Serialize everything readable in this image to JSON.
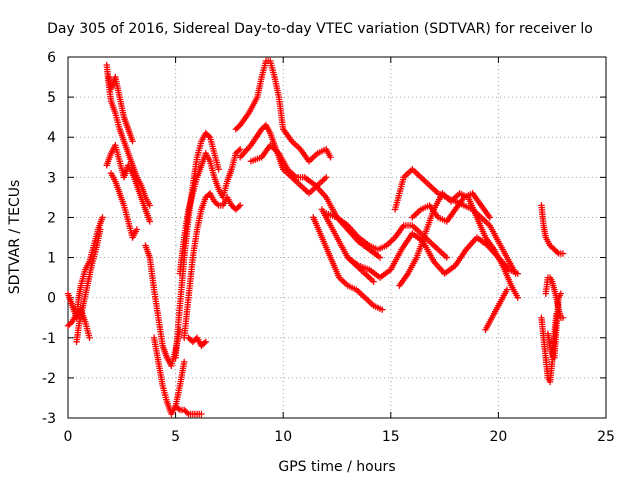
{
  "chart_data": {
    "type": "scatter",
    "title": "Day 305 of 2016, Sidereal Day-to-day VTEC variation (SDTVAR) for receiver lo",
    "xlabel": "GPS time / hours",
    "ylabel": "SDTVAR / TECUs",
    "xlim": [
      0,
      25
    ],
    "ylim": [
      -3,
      6
    ],
    "xticks": [
      0,
      5,
      10,
      15,
      20,
      25
    ],
    "yticks": [
      -3,
      -2,
      -1,
      0,
      1,
      2,
      3,
      4,
      5,
      6
    ],
    "grid": true,
    "marker": "+",
    "color": "#ff0000",
    "series": [
      {
        "x": [
          0,
          0.2,
          0.4,
          0.5,
          0.6,
          0.8,
          1.0,
          1.2,
          1.4,
          1.6
        ],
        "y": [
          0.1,
          -0.2,
          -0.5,
          0.0,
          0.3,
          0.7,
          0.9,
          1.3,
          1.7,
          2.0
        ]
      },
      {
        "x": [
          0,
          0.2,
          0.4,
          0.6,
          0.8,
          1.0
        ],
        "y": [
          -0.7,
          -0.6,
          -0.4,
          -0.3,
          -0.6,
          -1.0
        ]
      },
      {
        "x": [
          0.4,
          0.5,
          0.7,
          0.9,
          1.1,
          1.3,
          1.5
        ],
        "y": [
          -1.1,
          -0.7,
          -0.2,
          0.3,
          0.8,
          1.2,
          1.7
        ]
      },
      {
        "x": [
          1.8,
          1.9,
          2.0,
          2.2,
          2.4,
          2.6,
          2.8,
          3.0,
          3.2,
          3.4,
          3.6,
          3.8
        ],
        "y": [
          5.8,
          5.3,
          4.9,
          4.6,
          4.2,
          3.9,
          3.6,
          3.3,
          3.0,
          2.8,
          2.5,
          2.3
        ]
      },
      {
        "x": [
          1.9,
          2.0,
          2.2,
          2.4,
          2.6,
          2.8,
          3.0
        ],
        "y": [
          5.5,
          5.2,
          5.5,
          5.0,
          4.5,
          4.2,
          3.9
        ]
      },
      {
        "x": [
          1.8,
          2.0,
          2.2,
          2.4,
          2.6,
          2.8,
          3.0,
          3.2,
          3.4,
          3.6,
          3.8
        ],
        "y": [
          3.3,
          3.6,
          3.8,
          3.4,
          3.0,
          3.3,
          3.1,
          2.8,
          2.5,
          2.2,
          1.9
        ]
      },
      {
        "x": [
          2.0,
          2.2,
          2.4,
          2.6,
          2.8,
          3.0,
          3.2
        ],
        "y": [
          3.1,
          2.9,
          2.6,
          2.3,
          1.9,
          1.5,
          1.7
        ]
      },
      {
        "x": [
          3.6,
          3.8,
          4.0,
          4.2,
          4.4,
          4.6,
          4.8,
          5.0,
          5.2
        ],
        "y": [
          1.3,
          1.0,
          0.2,
          -0.5,
          -1.2,
          -1.5,
          -1.7,
          -1.3,
          -0.8
        ]
      },
      {
        "x": [
          4.0,
          4.2,
          4.4,
          4.6,
          4.8,
          5.0,
          5.2,
          5.4
        ],
        "y": [
          -1.0,
          -1.6,
          -2.2,
          -2.6,
          -2.9,
          -2.7,
          -2.2,
          -1.6
        ]
      },
      {
        "x": [
          5.0,
          5.2,
          5.4,
          5.6,
          5.8,
          6.0,
          6.2
        ],
        "y": [
          -2.7,
          -2.8,
          -2.8,
          -2.9,
          -2.9,
          -2.9,
          -2.9
        ]
      },
      {
        "x": [
          5.0,
          5.2,
          5.4,
          5.6,
          5.8,
          6.0,
          6.2,
          6.4,
          6.6,
          6.8,
          7.0
        ],
        "y": [
          -1.5,
          -0.2,
          1.0,
          2.0,
          2.8,
          3.5,
          3.9,
          4.1,
          4.0,
          3.6,
          3.2
        ]
      },
      {
        "x": [
          5.2,
          5.4,
          5.6,
          5.8,
          6.0,
          6.2,
          6.4,
          6.6,
          6.8,
          7.0,
          7.2,
          7.4,
          7.6,
          7.8,
          8.0
        ],
        "y": [
          0.6,
          1.5,
          2.2,
          2.6,
          3.0,
          3.3,
          3.6,
          3.4,
          3.0,
          2.7,
          2.5,
          2.9,
          3.2,
          3.6,
          3.7
        ]
      },
      {
        "x": [
          5.4,
          5.6,
          5.8,
          6.0,
          6.2,
          6.4,
          6.6,
          6.8,
          7.0,
          7.2,
          7.4,
          7.6,
          7.8,
          8.0
        ],
        "y": [
          -1.0,
          0.0,
          1.0,
          1.7,
          2.2,
          2.5,
          2.6,
          2.4,
          2.3,
          2.3,
          2.5,
          2.3,
          2.2,
          2.3
        ]
      },
      {
        "x": [
          5.6,
          5.8,
          6.0,
          6.2,
          6.4
        ],
        "y": [
          -1.0,
          -1.1,
          -1.0,
          -1.2,
          -1.1
        ]
      },
      {
        "x": [
          7.8,
          8.0,
          8.4,
          8.8,
          9.0,
          9.2,
          9.4,
          9.6,
          9.8,
          10.0,
          10.4,
          10.8,
          11.2,
          11.6,
          12.0,
          12.2
        ],
        "y": [
          4.2,
          4.3,
          4.6,
          5.0,
          5.5,
          5.9,
          5.9,
          5.5,
          5.0,
          4.2,
          3.9,
          3.7,
          3.4,
          3.6,
          3.7,
          3.5
        ]
      },
      {
        "x": [
          8.0,
          8.5,
          9.0,
          9.2,
          9.4,
          9.6,
          9.8,
          10.0,
          10.4,
          10.8,
          11.2,
          11.6,
          12.0
        ],
        "y": [
          3.5,
          3.8,
          4.2,
          4.3,
          4.1,
          3.8,
          3.5,
          3.2,
          3.0,
          2.8,
          2.6,
          2.8,
          3.0
        ]
      },
      {
        "x": [
          8.5,
          9.0,
          9.4,
          9.8,
          10.2,
          10.6,
          11.0,
          11.5,
          12.0,
          12.5,
          13.0,
          13.5,
          14.0,
          14.5
        ],
        "y": [
          3.4,
          3.5,
          3.8,
          3.6,
          3.2,
          3.0,
          3.0,
          2.8,
          2.5,
          2.0,
          1.7,
          1.4,
          1.2,
          1.0
        ]
      },
      {
        "x": [
          11.4,
          11.8,
          12.2,
          12.6,
          13.0,
          13.4,
          13.8,
          14.2,
          14.6
        ],
        "y": [
          2.0,
          1.5,
          1.0,
          0.5,
          0.3,
          0.2,
          0.0,
          -0.2,
          -0.3
        ]
      },
      {
        "x": [
          11.8,
          12.2,
          12.6,
          13.0,
          13.4,
          13.8,
          14.2
        ],
        "y": [
          2.2,
          1.8,
          1.4,
          1.0,
          0.8,
          0.6,
          0.4
        ]
      },
      {
        "x": [
          12.0,
          12.5,
          13.0,
          13.5,
          14.0,
          14.4,
          14.8,
          15.2,
          15.6,
          16.0,
          16.4,
          16.8,
          17.2,
          17.6
        ],
        "y": [
          2.1,
          2.0,
          1.8,
          1.5,
          1.3,
          1.2,
          1.3,
          1.5,
          1.8,
          1.8,
          1.6,
          1.4,
          1.2,
          1.0
        ]
      },
      {
        "x": [
          13.0,
          13.5,
          14.0,
          14.5,
          15.0,
          15.5,
          16.0,
          16.5,
          17.0,
          17.5,
          18.0,
          18.5,
          19.0,
          19.5,
          20.0,
          20.5,
          20.9
        ],
        "y": [
          1.0,
          0.8,
          0.7,
          0.5,
          0.7,
          1.2,
          1.6,
          1.4,
          0.9,
          0.6,
          0.8,
          1.2,
          1.5,
          1.3,
          1.0,
          0.7,
          0.6
        ]
      },
      {
        "x": [
          15.2,
          15.6,
          16.0,
          16.4,
          16.8,
          17.2,
          17.6,
          18.0,
          18.4,
          18.8,
          19.2,
          19.6,
          20.0,
          20.4,
          20.8
        ],
        "y": [
          2.2,
          3.0,
          3.2,
          3.0,
          2.8,
          2.6,
          2.5,
          2.4,
          2.3,
          2.2,
          2.0,
          1.8,
          1.4,
          1.0,
          0.6
        ]
      },
      {
        "x": [
          15.4,
          15.8,
          16.2,
          16.6,
          17.0,
          17.4,
          17.8,
          18.2,
          18.6,
          19.0,
          19.4,
          19.8,
          20.2,
          20.6,
          20.9
        ],
        "y": [
          0.3,
          0.6,
          1.0,
          1.6,
          2.2,
          2.6,
          2.4,
          2.6,
          2.5,
          2.0,
          1.5,
          1.2,
          0.8,
          0.3,
          0.0
        ]
      },
      {
        "x": [
          16.0,
          16.4,
          16.8,
          17.2,
          17.6,
          18.0,
          18.4,
          18.8,
          19.2,
          19.6
        ],
        "y": [
          2.0,
          2.2,
          2.3,
          2.0,
          1.9,
          2.2,
          2.5,
          2.6,
          2.3,
          2.0
        ]
      },
      {
        "x": [
          19.4,
          19.6,
          19.8,
          20.0,
          20.2,
          20.4
        ],
        "y": [
          -0.8,
          -0.6,
          -0.4,
          -0.2,
          0.0,
          0.2
        ]
      },
      {
        "x": [
          22.0,
          22.1,
          22.2,
          22.3,
          22.4,
          22.6,
          22.8,
          23.0
        ],
        "y": [
          2.3,
          1.8,
          1.5,
          1.4,
          1.3,
          1.2,
          1.1,
          1.1
        ]
      },
      {
        "x": [
          22.0,
          22.1,
          22.2,
          22.3,
          22.4,
          22.5,
          22.6,
          22.7
        ],
        "y": [
          -0.5,
          -1.0,
          -1.5,
          -2.0,
          -2.1,
          -1.6,
          -0.9,
          -0.4
        ]
      },
      {
        "x": [
          22.2,
          22.3,
          22.4,
          22.5,
          22.6,
          22.7,
          22.8,
          22.9,
          23.0
        ],
        "y": [
          0.1,
          0.5,
          0.5,
          0.4,
          0.2,
          0.0,
          -0.3,
          -0.5,
          -0.5
        ]
      },
      {
        "x": [
          22.3,
          22.4,
          22.5,
          22.6,
          22.7,
          22.8,
          22.9
        ],
        "y": [
          -0.9,
          -1.2,
          -1.4,
          -1.5,
          -0.7,
          0.0,
          0.1
        ]
      }
    ]
  }
}
